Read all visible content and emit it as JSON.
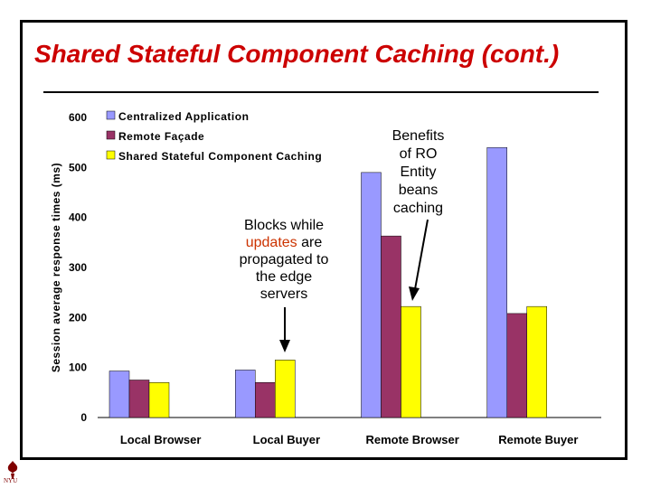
{
  "slide": {
    "title": "Shared Stateful Component Caching (cont.)",
    "logo_text": "NYU"
  },
  "chart_data": {
    "type": "bar",
    "title": "",
    "xlabel": "",
    "ylabel": "Session average response times (ms)",
    "ylim": [
      0,
      600
    ],
    "yticks": [
      0,
      100,
      200,
      300,
      400,
      500,
      600
    ],
    "grid": false,
    "legend_position": "top-left",
    "categories": [
      "Local Browser",
      "Local Buyer",
      "Remote Browser",
      "Remote Buyer"
    ],
    "series": [
      {
        "name": "Centralized Application",
        "color": "#9999ff",
        "values": [
          93,
          95,
          490,
          540
        ]
      },
      {
        "name": "Remote Façade",
        "color": "#993366",
        "values": [
          75,
          70,
          363,
          208
        ]
      },
      {
        "name": "Shared Stateful Component Caching",
        "color": "#ffff00",
        "values": [
          70,
          115,
          222,
          222
        ]
      }
    ]
  },
  "annotations": {
    "blocks": {
      "line1": "Blocks while",
      "line2_highlight": "updates",
      "line2_rest": " are",
      "line3": "propagated to",
      "line4": "the edge",
      "line5": "servers"
    },
    "benefits": {
      "line1": "Benefits",
      "line2": "of RO",
      "line3": "Entity",
      "line4": "beans",
      "line5": "caching"
    }
  }
}
